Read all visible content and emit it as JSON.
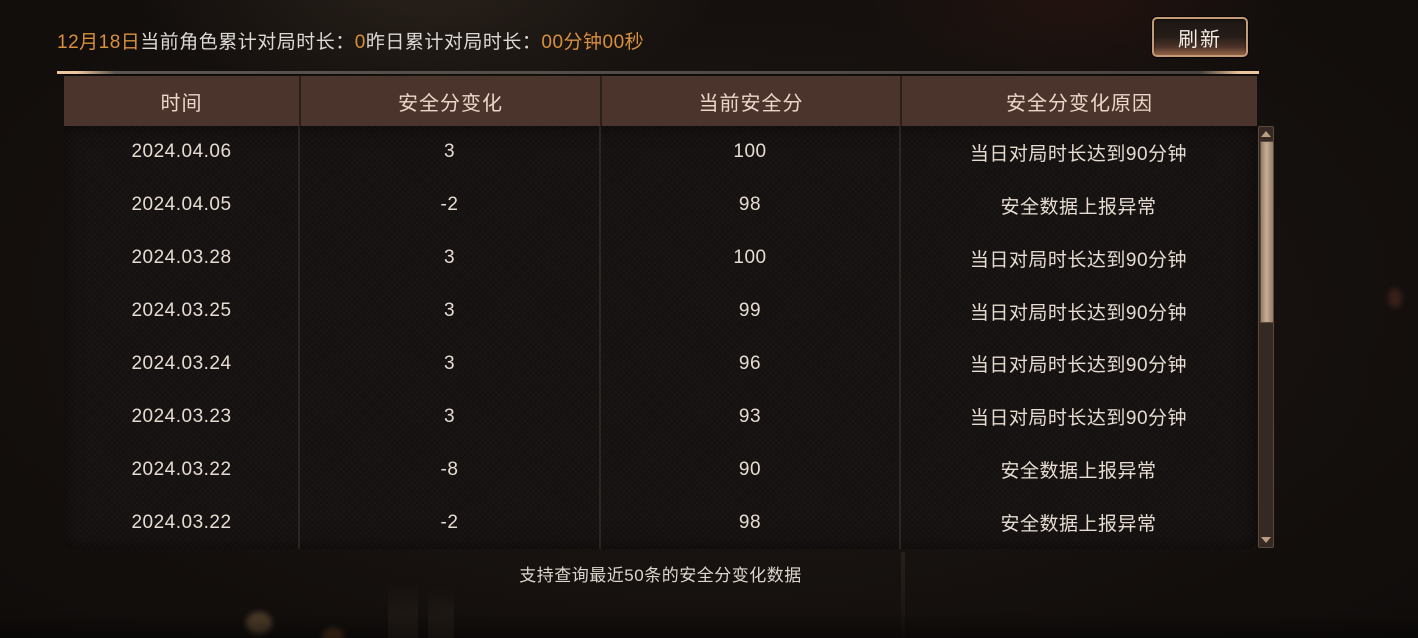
{
  "topbar": {
    "date_label": "12月18日",
    "today_label": "当前角色累计对局时长：",
    "today_value": "0",
    "yesterday_label": "昨日累计对局时长：",
    "yesterday_value": "00分钟00秒",
    "refresh_label": "刷新"
  },
  "colors": {
    "accent_orange": "#d8903f",
    "header_bg": "#4b342b",
    "header_text": "#ecd6c9",
    "cell_text": "#e6dcd1",
    "button_border": "#c59a76",
    "scroll_thumb": "#c7ad93",
    "line_tip_peach": "#eec69e"
  },
  "table": {
    "headers": [
      "时间",
      "安全分变化",
      "当前安全分",
      "安全分变化原因"
    ],
    "rows": [
      [
        "2024.04.06",
        "3",
        "100",
        "当日对局时长达到90分钟"
      ],
      [
        "2024.04.05",
        "-2",
        "98",
        "安全数据上报异常"
      ],
      [
        "2024.03.28",
        "3",
        "100",
        "当日对局时长达到90分钟"
      ],
      [
        "2024.03.25",
        "3",
        "99",
        "当日对局时长达到90分钟"
      ],
      [
        "2024.03.24",
        "3",
        "96",
        "当日对局时长达到90分钟"
      ],
      [
        "2024.03.23",
        "3",
        "93",
        "当日对局时长达到90分钟"
      ],
      [
        "2024.03.22",
        "-8",
        "90",
        "安全数据上报异常"
      ],
      [
        "2024.03.22",
        "-2",
        "98",
        "安全数据上报异常"
      ]
    ]
  },
  "footer": {
    "note": "支持查询最近50条的安全分变化数据"
  },
  "scrollbar": {
    "up_icon": "scroll-up-arrow",
    "down_icon": "scroll-down-arrow"
  }
}
